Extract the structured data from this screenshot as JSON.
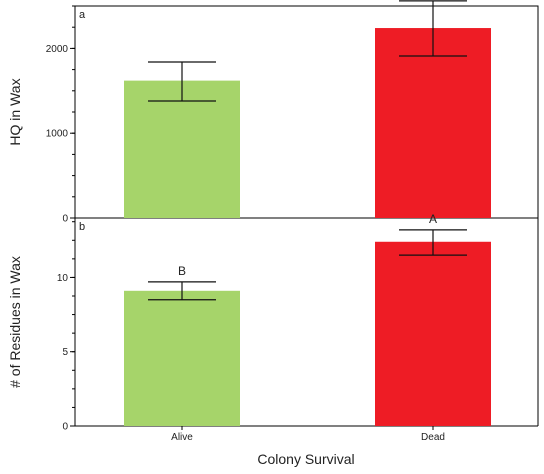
{
  "colors": {
    "alive": "#a6d46a",
    "dead": "#ee1c25",
    "axis": "#000000"
  },
  "chart_data": {
    "type": "bar",
    "categories": [
      "Alive",
      "Dead"
    ],
    "xlabel": "Colony Survival",
    "panels": [
      {
        "panel": "a",
        "ylabel": "HQ in Wax",
        "ylim": [
          0,
          2500
        ],
        "ytick_labels": [
          "0",
          "1000",
          "2000"
        ],
        "yticks": [
          0,
          1000,
          2000
        ],
        "minor_step": 250,
        "values": [
          1620,
          2240
        ],
        "error_low": [
          1380,
          1910
        ],
        "error_high": [
          1840,
          2560
        ],
        "letters": [
          "",
          ""
        ]
      },
      {
        "panel": "b",
        "ylabel": "# of Residues in Wax",
        "ylim": [
          0,
          14
        ],
        "ytick_labels": [
          "0",
          "5",
          "10"
        ],
        "yticks": [
          0,
          5,
          10
        ],
        "minor_step": 1.25,
        "values": [
          9.1,
          12.4
        ],
        "error_low": [
          8.5,
          11.5
        ],
        "error_high": [
          9.7,
          13.2
        ],
        "letters": [
          "B",
          "A"
        ]
      }
    ]
  }
}
